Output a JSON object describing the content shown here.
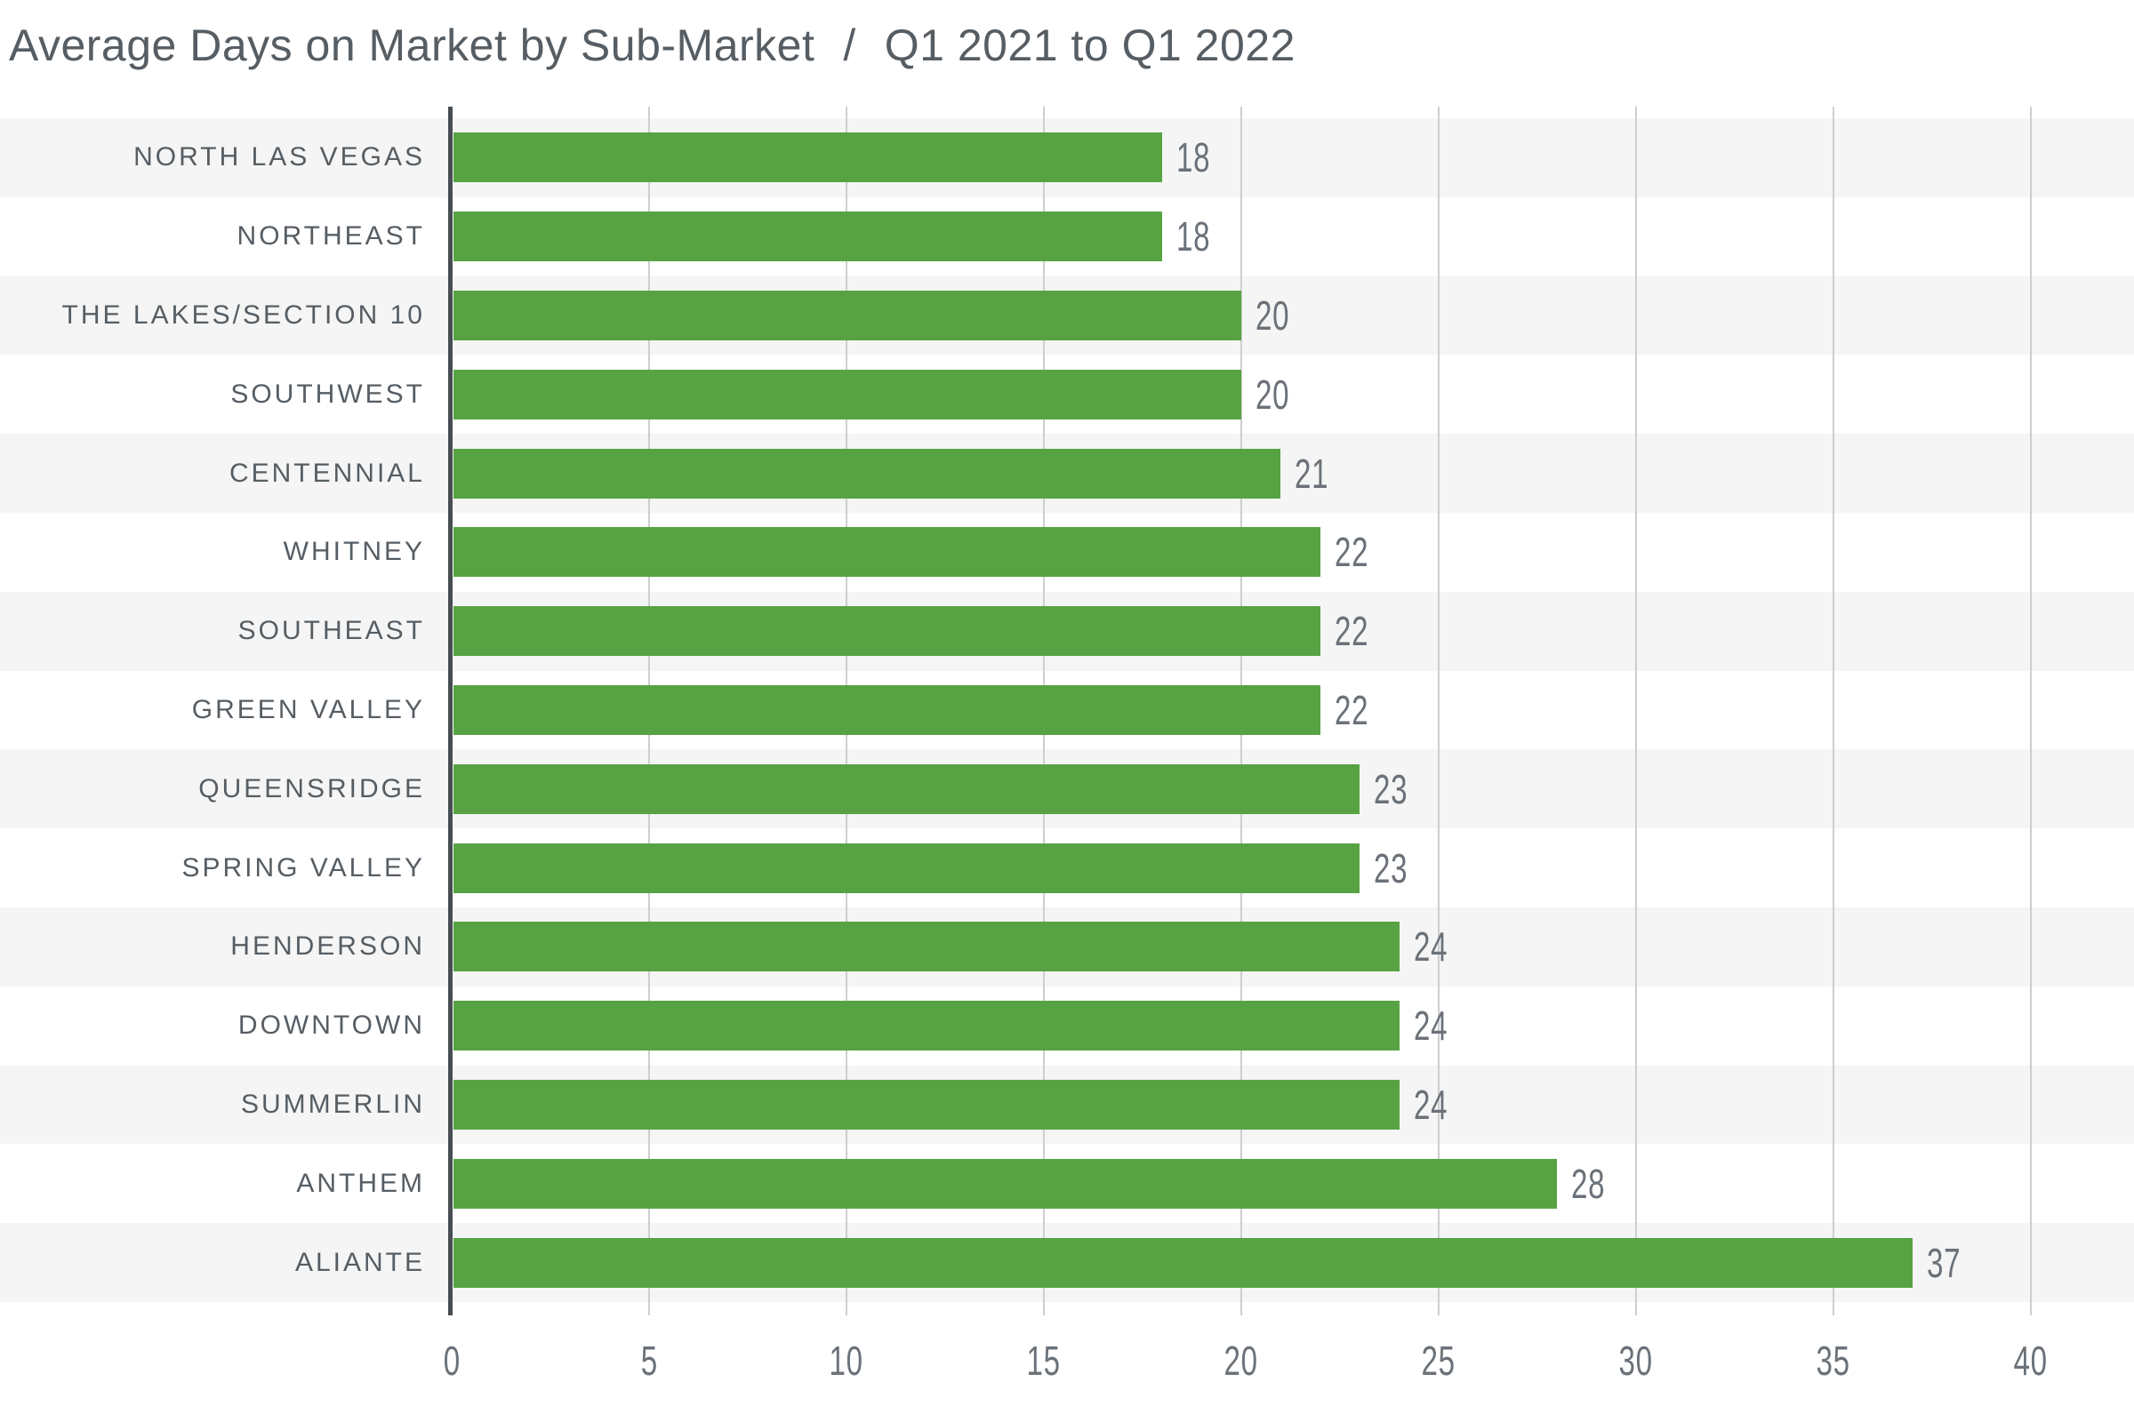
{
  "title": {
    "main": "Average Days on Market by Sub-Market",
    "separator": "/",
    "range": "Q1 2021 to Q1 2022"
  },
  "chart_data": {
    "type": "bar",
    "orientation": "horizontal",
    "title": "Average Days on Market by Sub-Market / Q1 2021 to Q1 2022",
    "categories": [
      "NORTH LAS VEGAS",
      "NORTHEAST",
      "THE LAKES/SECTION 10",
      "SOUTHWEST",
      "CENTENNIAL",
      "WHITNEY",
      "SOUTHEAST",
      "GREEN VALLEY",
      "QUEENSRIDGE",
      "SPRING VALLEY",
      "HENDERSON",
      "DOWNTOWN",
      "SUMMERLIN",
      "ANTHEM",
      "ALIANTE"
    ],
    "values": [
      18,
      18,
      20,
      20,
      21,
      22,
      22,
      22,
      23,
      23,
      24,
      24,
      24,
      28,
      37
    ],
    "xlabel": "",
    "ylabel": "",
    "xlim": [
      0,
      40
    ],
    "xticks": [
      0,
      5,
      10,
      15,
      20,
      25,
      30,
      35,
      40
    ],
    "grid": true,
    "legend": false,
    "colors": {
      "bar": "#57a344",
      "stripe": "#f4f5f4",
      "gridline": "#cdcecf",
      "axis": "#474d52",
      "category_label": "#565d63",
      "value_label": "#6b7178",
      "title": "#565d63"
    }
  }
}
